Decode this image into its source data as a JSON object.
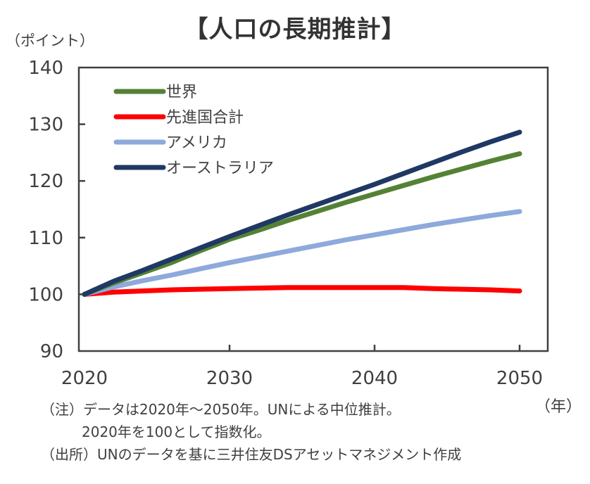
{
  "chart_data": {
    "type": "line",
    "title": "【人口の長期推計】",
    "ylabel": "（ポイント）",
    "xlabel": "（年）",
    "ylim": [
      90,
      140
    ],
    "xlim": [
      2020,
      2050
    ],
    "yticks": [
      90,
      100,
      110,
      120,
      130,
      140
    ],
    "xticks": [
      2020,
      2030,
      2040,
      2050
    ],
    "ytick_labels": [
      "90",
      "100",
      "110",
      "120",
      "130",
      "140"
    ],
    "xtick_labels": [
      "2020",
      "2030",
      "2040",
      "2050"
    ],
    "grid": false,
    "legend_position": "top-left",
    "x": [
      2020,
      2022,
      2024,
      2026,
      2028,
      2030,
      2032,
      2034,
      2036,
      2038,
      2040,
      2042,
      2044,
      2046,
      2048,
      2050
    ],
    "series": [
      {
        "name": "世界",
        "color": "#548235",
        "values": [
          100.0,
          102.0,
          103.8,
          105.6,
          107.7,
          109.7,
          111.3,
          113.0,
          114.6,
          116.2,
          117.7,
          119.2,
          120.7,
          122.1,
          123.5,
          124.8
        ]
      },
      {
        "name": "先進国合計",
        "color": "#FF0000",
        "values": [
          100.0,
          100.4,
          100.6,
          100.8,
          100.9,
          101.0,
          101.1,
          101.2,
          101.2,
          101.2,
          101.2,
          101.2,
          101.0,
          100.9,
          100.8,
          100.6
        ]
      },
      {
        "name": "アメリカ",
        "color": "#8EA9DB",
        "values": [
          100.0,
          101.3,
          102.4,
          103.4,
          104.5,
          105.6,
          106.6,
          107.6,
          108.6,
          109.6,
          110.5,
          111.4,
          112.3,
          113.1,
          113.9,
          114.6
        ]
      },
      {
        "name": "オーストラリア",
        "color": "#1F3864",
        "values": [
          100.0,
          102.3,
          104.2,
          106.2,
          108.2,
          110.2,
          112.1,
          114.0,
          115.8,
          117.6,
          119.4,
          121.3,
          123.2,
          125.1,
          126.9,
          128.6
        ]
      }
    ],
    "axis_color": "#404040"
  },
  "notes": {
    "line1": "（注）データは2020年～2050年。UNによる中位推計。",
    "line2": "2020年を100として指数化。",
    "line3": "（出所）UNのデータを基に三井住友DSアセットマネジメント作成"
  }
}
